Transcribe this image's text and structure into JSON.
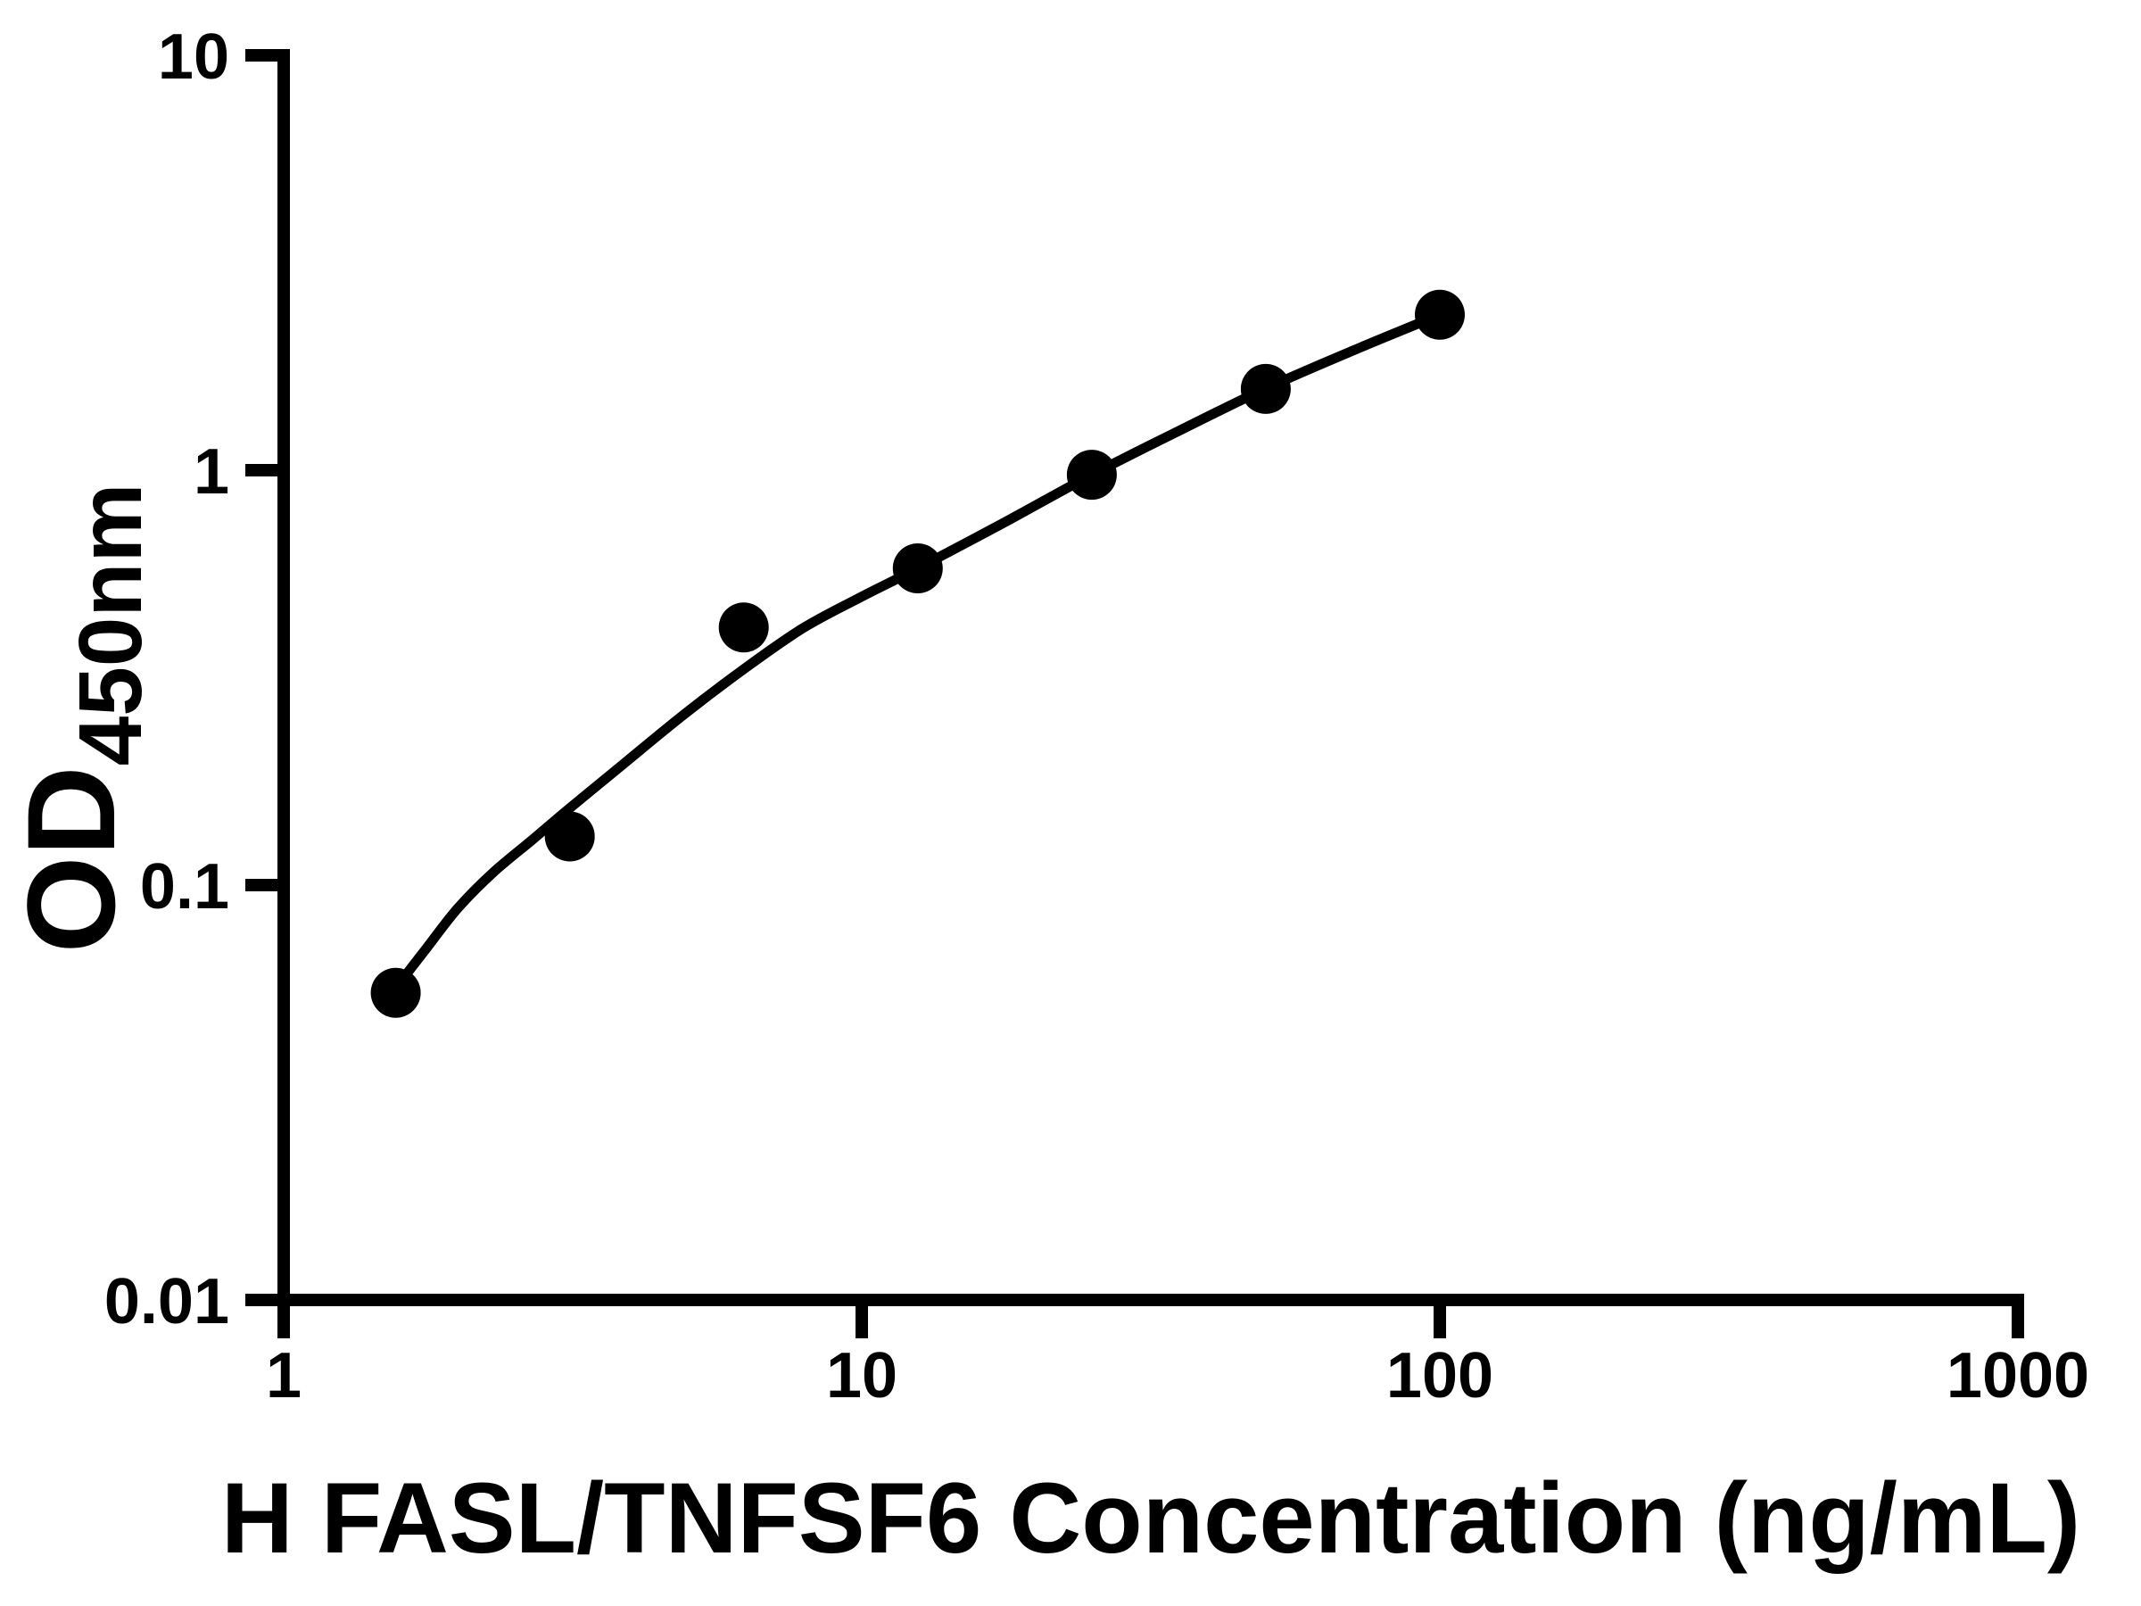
{
  "chart_data": {
    "type": "scatter",
    "title": "",
    "x_axis": {
      "title": "H FASL/TNFSF6 Concentration (ng/mL)",
      "scale": "log10",
      "min": 1,
      "max": 1000,
      "tick_values": [
        1,
        10,
        100,
        1000
      ],
      "tick_labels": [
        "1",
        "10",
        "100",
        "1000"
      ]
    },
    "y_axis": {
      "title_main": "OD",
      "title_sub": "450nm",
      "title_full": "OD450nm",
      "scale": "log10",
      "min": 0.01,
      "max": 10,
      "tick_values": [
        0.01,
        0.1,
        1,
        10
      ],
      "tick_labels": [
        "0.01",
        "0.1",
        "1",
        "10"
      ]
    },
    "xlim": [
      1,
      1000
    ],
    "ylim": [
      0.01,
      10
    ],
    "grid": false,
    "legend": "none",
    "series": [
      {
        "name": "standard-points",
        "marker": "filled-circle",
        "x": [
          1.5625,
          3.125,
          6.25,
          12.5,
          25,
          50,
          100
        ],
        "y": [
          0.055,
          0.131,
          0.418,
          0.58,
          0.975,
          1.57,
          2.37
        ]
      }
    ],
    "fit_curve": {
      "name": "fitted-standard-curve",
      "x": [
        1.56,
        1.77,
        2.0,
        2.3,
        2.7,
        3.12,
        3.89,
        4.93,
        6.24,
        7.91,
        9.98,
        12.5,
        17.7,
        25.0,
        35.2,
        49.8,
        70.6,
        100
      ],
      "y": [
        0.0563,
        0.0707,
        0.0879,
        0.107,
        0.129,
        0.153,
        0.197,
        0.258,
        0.331,
        0.416,
        0.495,
        0.58,
        0.75,
        0.975,
        1.24,
        1.57,
        1.94,
        2.37
      ]
    },
    "colors": {
      "points": "#000000",
      "curve": "#000000",
      "axis": "#000000",
      "background": "#ffffff"
    }
  }
}
